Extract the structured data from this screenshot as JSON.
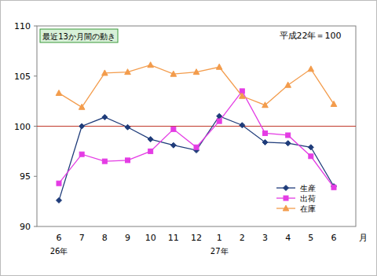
{
  "chart_data": {
    "type": "line",
    "title": "最近13か月間の動き",
    "annotation": "平成22年＝100",
    "x_label": "月",
    "categories": [
      "6",
      "7",
      "8",
      "9",
      "10",
      "11",
      "12",
      "1",
      "2",
      "3",
      "4",
      "5",
      "6"
    ],
    "year_labels": [
      "26年",
      null,
      null,
      null,
      null,
      null,
      null,
      "27年",
      null,
      null,
      null,
      null,
      null
    ],
    "series": [
      {
        "name": "生産",
        "color": "#1f3c7a",
        "marker": "diamond",
        "values": [
          92.6,
          100.0,
          100.9,
          99.9,
          98.7,
          98.1,
          97.6,
          101.0,
          100.1,
          98.4,
          98.3,
          97.9,
          94.0
        ]
      },
      {
        "name": "出荷",
        "color": "#e43ce4",
        "marker": "square",
        "values": [
          94.3,
          97.2,
          96.5,
          96.6,
          97.5,
          99.7,
          97.9,
          100.5,
          103.5,
          99.3,
          99.1,
          97.0,
          93.9
        ]
      },
      {
        "name": "在庫",
        "color": "#f39c4c",
        "marker": "triangle",
        "values": [
          103.3,
          101.9,
          105.3,
          105.4,
          106.1,
          105.2,
          105.4,
          105.9,
          103.0,
          102.1,
          104.1,
          105.7,
          102.2
        ]
      }
    ],
    "reference_line": 100,
    "ylim": [
      90,
      110
    ],
    "yticks": [
      90,
      95,
      100,
      105,
      110
    ],
    "grid": false,
    "legend": "lower-right"
  }
}
